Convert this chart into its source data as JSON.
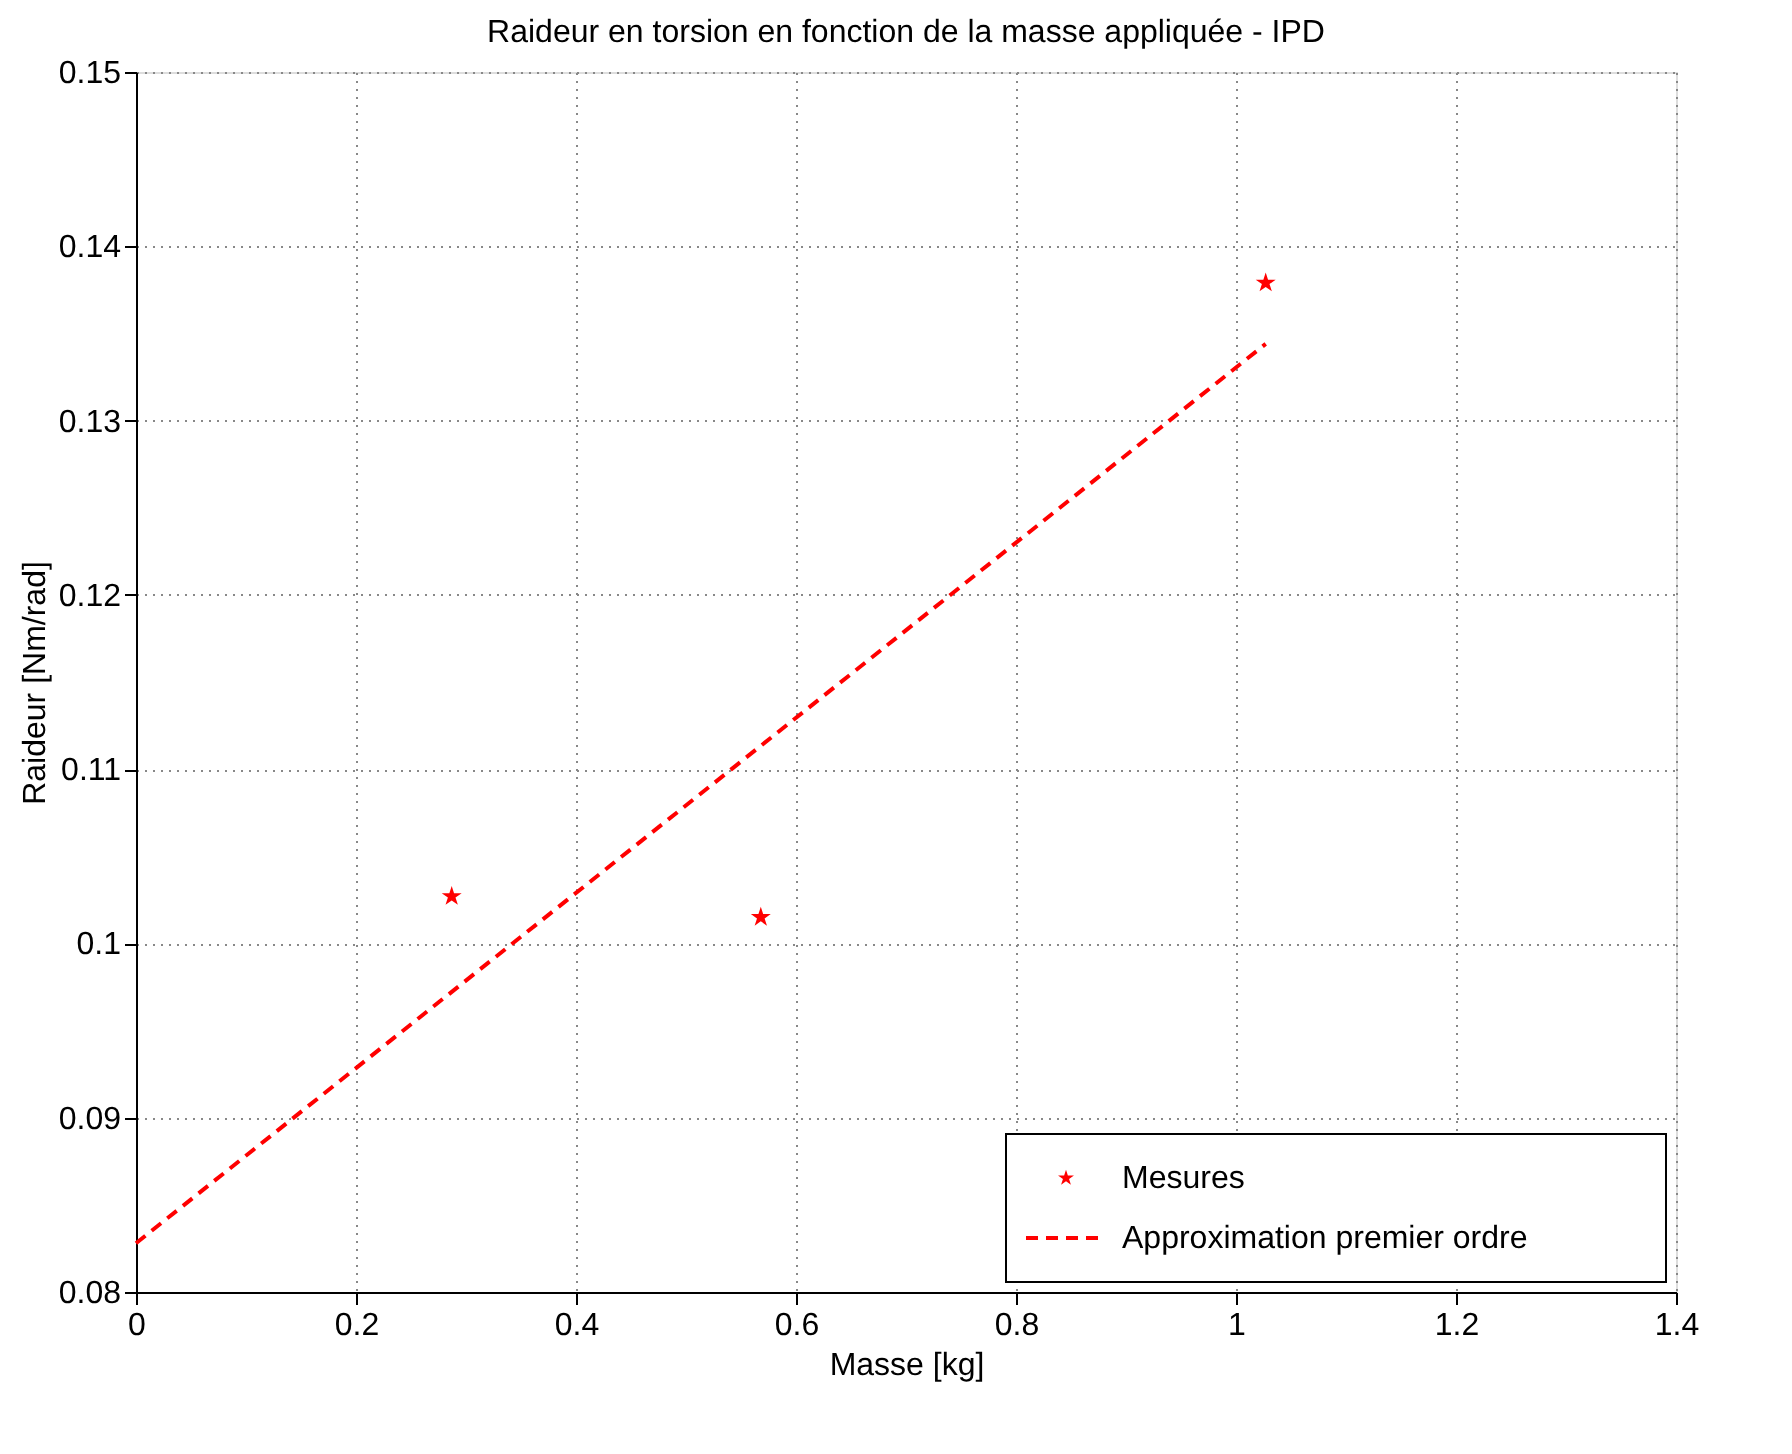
{
  "chart_data": {
    "type": "scatter",
    "title": "Raideur en torsion en fonction de la masse appliquée - IPD",
    "xlabel": "Masse [kg]",
    "ylabel": "Raideur [Nm/rad]",
    "xlim": [
      0,
      1.4
    ],
    "xticks": [
      0,
      0.2,
      0.4,
      0.6,
      0.8,
      1,
      1.2,
      1.4
    ],
    "ylim": [
      0.08,
      0.15
    ],
    "yticks": [
      0.08,
      0.09,
      0.1,
      0.11,
      0.12,
      0.13,
      0.14,
      0.15
    ],
    "grid": true,
    "legend": "bottom right",
    "series": [
      {
        "name": "Mesures",
        "color": "#ff0000",
        "marker": "star",
        "x": [
          0.287,
          0.568,
          1.027
        ],
        "values": [
          0.1027,
          0.1015,
          0.1379
        ]
      },
      {
        "name": "Approximation premier ordre",
        "type": "line",
        "color": "#ff0000",
        "line_style": "dashed",
        "marker": "none",
        "x": [
          0,
          1.027
        ],
        "values": [
          0.0828,
          0.1344
        ]
      }
    ]
  }
}
